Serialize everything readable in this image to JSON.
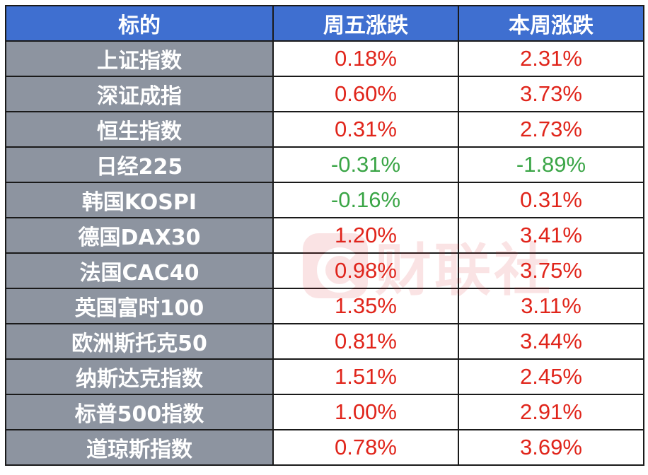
{
  "table": {
    "headers": [
      "标的",
      "周五涨跌",
      "本周涨跌"
    ],
    "rows": [
      {
        "name": "上证指数",
        "fri": "0.18%",
        "week": "2.31%",
        "fri_dir": "up",
        "week_dir": "up"
      },
      {
        "name": "深证成指",
        "fri": "0.60%",
        "week": "3.73%",
        "fri_dir": "up",
        "week_dir": "up"
      },
      {
        "name": "恒生指数",
        "fri": "0.31%",
        "week": "2.73%",
        "fri_dir": "up",
        "week_dir": "up"
      },
      {
        "name": "日经225",
        "fri": "-0.31%",
        "week": "-1.89%",
        "fri_dir": "down",
        "week_dir": "down"
      },
      {
        "name": "韩国KOSPI",
        "fri": "-0.16%",
        "week": "0.31%",
        "fri_dir": "down",
        "week_dir": "up"
      },
      {
        "name": "德国DAX30",
        "fri": "1.20%",
        "week": "3.41%",
        "fri_dir": "up",
        "week_dir": "up"
      },
      {
        "name": "法国CAC40",
        "fri": "0.98%",
        "week": "3.75%",
        "fri_dir": "up",
        "week_dir": "up"
      },
      {
        "name": "英国富时100",
        "fri": "1.35%",
        "week": "3.11%",
        "fri_dir": "up",
        "week_dir": "up"
      },
      {
        "name": "欧洲斯托克50",
        "fri": "0.81%",
        "week": "3.44%",
        "fri_dir": "up",
        "week_dir": "up"
      },
      {
        "name": "纳斯达克指数",
        "fri": "1.51%",
        "week": "2.45%",
        "fri_dir": "up",
        "week_dir": "up"
      },
      {
        "name": "标普500指数",
        "fri": "1.00%",
        "week": "2.91%",
        "fri_dir": "up",
        "week_dir": "up"
      },
      {
        "name": "道琼斯指数",
        "fri": "0.78%",
        "week": "3.69%",
        "fri_dir": "up",
        "week_dir": "up"
      }
    ]
  },
  "colors": {
    "header_bg": "#3f6fd0",
    "name_bg": "#8d94a0",
    "up": "#e0251b",
    "down": "#3aa546"
  },
  "watermark": {
    "text": "财联社",
    "icon": "cailianshe-logo-icon"
  }
}
